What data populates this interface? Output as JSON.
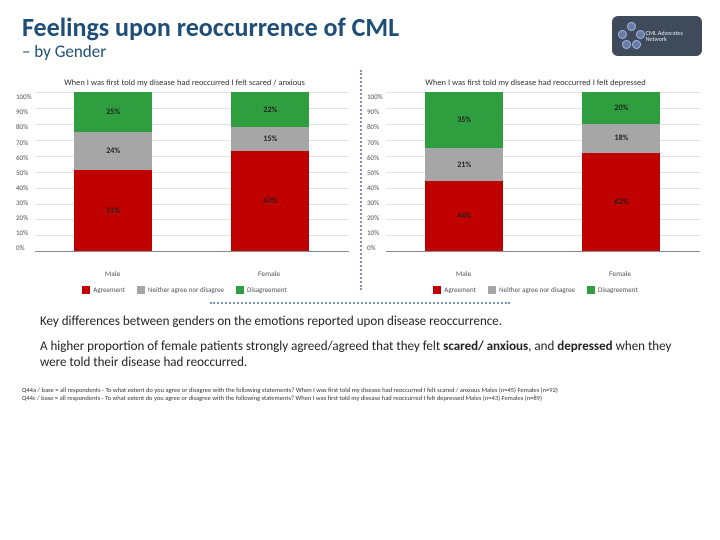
{
  "header": {
    "title": "Feelings upon reoccurrence of CML",
    "subtitle": "– by Gender",
    "logo_text": "CML Advocates Network"
  },
  "colors": {
    "agreement": "#c00000",
    "neither": "#a6a6a6",
    "disagreement": "#2e9e3f",
    "title_color": "#1f4e79",
    "grid": "#e3e3e3",
    "divider": "#8093b9"
  },
  "yaxis": {
    "ticks": [
      "0%",
      "10%",
      "20%",
      "30%",
      "40%",
      "50%",
      "60%",
      "70%",
      "80%",
      "90%",
      "100%"
    ]
  },
  "legend": {
    "items": [
      "Agreement",
      "Neither agree nor disagree",
      "Disagreement"
    ]
  },
  "charts": [
    {
      "title": "When I was first told my disease had reoccurred I felt scared / anxious",
      "categories": [
        "Male",
        "Female"
      ],
      "series": [
        {
          "key": "agreement",
          "values": [
            51,
            63
          ]
        },
        {
          "key": "neither",
          "values": [
            24,
            15
          ]
        },
        {
          "key": "disagreement",
          "values": [
            25,
            22
          ]
        }
      ]
    },
    {
      "title": "When I was first told my disease had reoccurred I felt depressed",
      "categories": [
        "Male",
        "Female"
      ],
      "series": [
        {
          "key": "agreement",
          "values": [
            44,
            62
          ]
        },
        {
          "key": "neither",
          "values": [
            21,
            18
          ]
        },
        {
          "key": "disagreement",
          "values": [
            35,
            20
          ]
        }
      ]
    }
  ],
  "body": {
    "p1": "Key differences between genders on the emotions reported upon disease reoccurrence.",
    "p2_pre": "A higher proportion of female patients strongly agreed/agreed that they felt ",
    "p2_b1": "scared/ anxious",
    "p2_mid": ", and ",
    "p2_b2": "depressed",
    "p2_post": " when they were told their disease had reoccurred."
  },
  "footnotes": {
    "f1": "Q44a / base = all respondents - To what extent do you agree or disagree with the following statements? When I was first told my disease had reoccurred I felt scared / anxious Males (n=45) Females (n=92)",
    "f2": "Q44c / base = all respondents - To what extent do you agree or disagree with the following statements? When I was first told my disease had reoccurred I felt depressed Males (n=43) Females (n=89)"
  }
}
